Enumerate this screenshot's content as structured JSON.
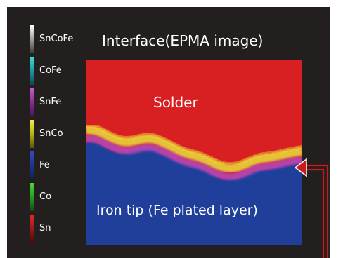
{
  "title": "Interface(EPMA image)",
  "legend": [
    {
      "label": "SnCoFe",
      "colors": [
        "#ffffff",
        "#9e9e9e",
        "#3d3d3d"
      ]
    },
    {
      "label": "CoFe",
      "colors": [
        "#43d6dc",
        "#1a9aa2",
        "#0d4b50"
      ]
    },
    {
      "label": "SnFe",
      "colors": [
        "#c25bc6",
        "#8a2f92",
        "#461a4a"
      ]
    },
    {
      "label": "SnCo",
      "colors": [
        "#f5f03a",
        "#b8b01f",
        "#5c5510"
      ]
    },
    {
      "label": "Fe",
      "colors": [
        "#2f4fb8",
        "#1b3690",
        "#0f1f55"
      ]
    },
    {
      "label": "Co",
      "colors": [
        "#4fd43a",
        "#2b9c20",
        "#144c10"
      ]
    },
    {
      "label": "Sn",
      "colors": [
        "#e02a2a",
        "#9e1818",
        "#4a0c0c"
      ]
    }
  ],
  "regions": {
    "solder": "Solder",
    "iron_tip": "Iron tip (Fe plated layer)"
  },
  "colors": {
    "background": "#231f1e",
    "solder": "#d81f22",
    "iron": "#1f3f9a",
    "interface_yellow": "#e8de3a",
    "interface_purple": "#b048c0",
    "arrow": "#cc1a1a"
  }
}
